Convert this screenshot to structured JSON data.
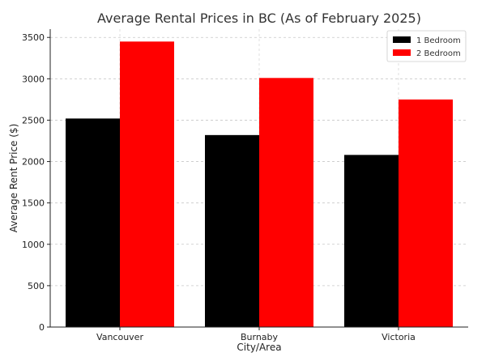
{
  "chart_data": {
    "type": "bar",
    "title": "Average Rental Prices in BC (As of February 2025)",
    "xlabel": "City/Area",
    "ylabel": "Average Rent Price ($)",
    "categories": [
      "Vancouver",
      "Burnaby",
      "Victoria"
    ],
    "series": [
      {
        "name": "1 Bedroom",
        "values": [
          2520,
          2320,
          2080
        ],
        "color": "#000000"
      },
      {
        "name": "2 Bedroom",
        "values": [
          3450,
          3010,
          2750
        ],
        "color": "#ff0000"
      }
    ],
    "ylim": [
      0,
      3600
    ],
    "yticks": [
      0,
      500,
      1000,
      1500,
      2000,
      2500,
      3000,
      3500
    ],
    "grid": true,
    "legend_position": "top-right"
  }
}
